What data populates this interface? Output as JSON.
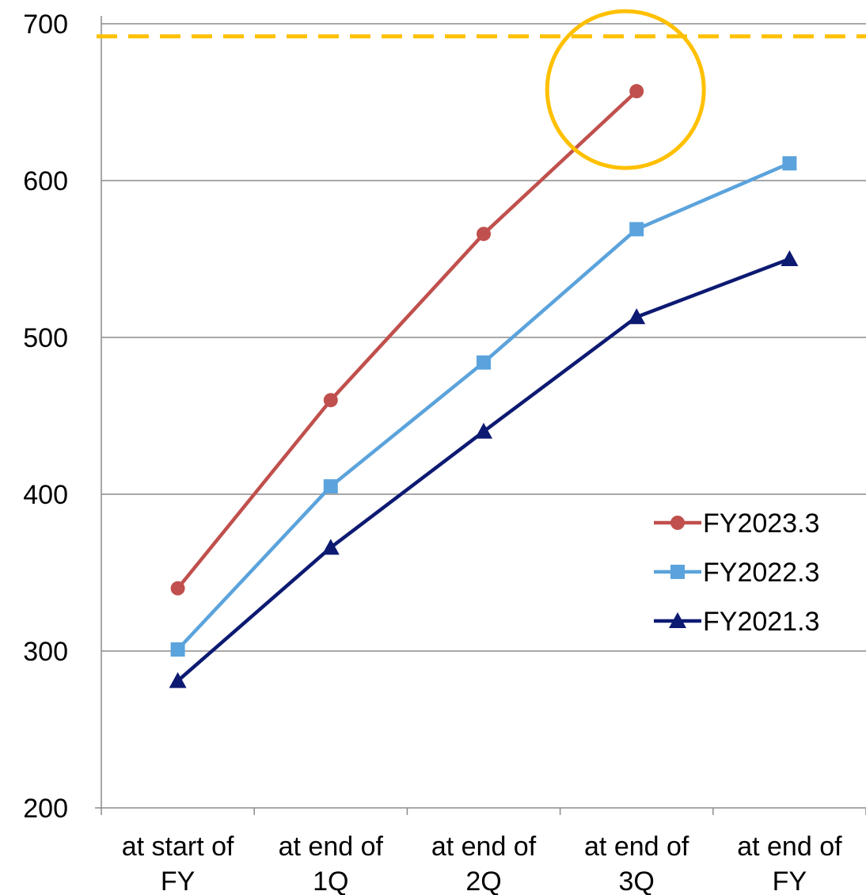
{
  "chart_data": {
    "type": "line",
    "title": "",
    "xlabel": "",
    "ylabel": "",
    "categories": [
      [
        "at start of",
        "FY"
      ],
      [
        "at end of",
        "1Q"
      ],
      [
        "at end of",
        "2Q"
      ],
      [
        "at end of",
        "3Q"
      ],
      [
        "at end of",
        "FY"
      ]
    ],
    "ylim": [
      200,
      700
    ],
    "yticks": [
      "200",
      "300",
      "400",
      "500",
      "600",
      "700"
    ],
    "grid": true,
    "legend_position": "right",
    "reference_line": {
      "value": 692,
      "color": "#FFC000",
      "style": "dashed"
    },
    "highlight": {
      "category_index": 3,
      "value": 657,
      "shape": "circle",
      "color": "#FFC000"
    },
    "series": [
      {
        "name": "FY2023.3",
        "values": [
          340,
          460,
          566,
          657,
          null
        ],
        "color": "#C0504D",
        "marker": "circle"
      },
      {
        "name": "FY2022.3",
        "values": [
          301,
          405,
          484,
          569,
          611
        ],
        "color": "#5BA3DC",
        "marker": "square"
      },
      {
        "name": "FY2021.3",
        "values": [
          281,
          366,
          440,
          513,
          550
        ],
        "color": "#0D1A72",
        "marker": "triangle"
      }
    ]
  }
}
